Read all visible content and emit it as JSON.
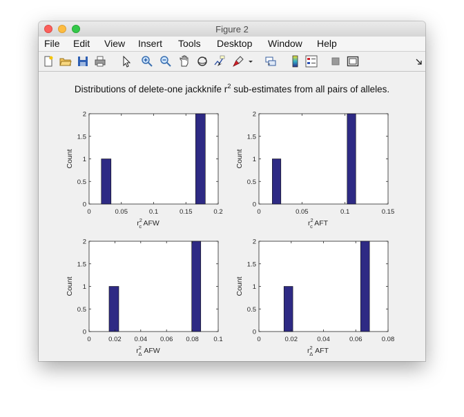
{
  "window": {
    "title": "Figure 2"
  },
  "menu": [
    "File",
    "Edit",
    "View",
    "Insert",
    "Tools",
    "Desktop",
    "Window",
    "Help"
  ],
  "toolbar": [
    "new-figure-icon",
    "open-file-icon",
    "save-icon",
    "print-icon",
    "pointer-icon",
    "zoom-in-icon",
    "zoom-out-icon",
    "pan-icon",
    "rotate-3d-icon",
    "data-cursor-icon",
    "brush-icon",
    "link-plot-icon",
    "colorbar-icon",
    "legend-icon",
    "hide-plot-tools-icon",
    "show-plot-tools-icon",
    "dock-arrow-icon"
  ],
  "figure": {
    "title_main": "Distributions of delete-one jackknife r",
    "title_sup": "2",
    "title_tail": " sub-estimates from all pairs of alleles."
  },
  "chart_data": [
    {
      "type": "bar",
      "xlabel": {
        "base": "r",
        "sup": "2",
        "sub": "c",
        "tail": " AFW"
      },
      "ylabel": "Count",
      "xlim": [
        0,
        0.2
      ],
      "ylim": [
        0,
        2
      ],
      "xticks": [
        "0",
        "0.05",
        "0.1",
        "0.15",
        "0.2"
      ],
      "yticks": [
        "0",
        "0.5",
        "1",
        "1.5",
        "2"
      ],
      "bars": [
        {
          "from": 0.019,
          "to": 0.034,
          "count": 1
        },
        {
          "from": 0.165,
          "to": 0.18,
          "count": 2
        }
      ]
    },
    {
      "type": "bar",
      "xlabel": {
        "base": "r",
        "sup": "2",
        "sub": "c",
        "tail": " AFT"
      },
      "ylabel": "Count",
      "xlim": [
        0,
        0.15
      ],
      "ylim": [
        0,
        2
      ],
      "xticks": [
        "0",
        "0.05",
        "0.1",
        "0.15"
      ],
      "yticks": [
        "0",
        "0.5",
        "1",
        "1.5",
        "2"
      ],
      "bars": [
        {
          "from": 0.0155,
          "to": 0.0255,
          "count": 1
        },
        {
          "from": 0.1025,
          "to": 0.1125,
          "count": 2
        }
      ]
    },
    {
      "type": "bar",
      "xlabel": {
        "base": "r",
        "sup": "2",
        "sub": "Δ",
        "tail": " AFW"
      },
      "ylabel": "Count",
      "xlim": [
        0,
        0.1
      ],
      "ylim": [
        0,
        2
      ],
      "xticks": [
        "0",
        "0.02",
        "0.04",
        "0.06",
        "0.08",
        "0.1"
      ],
      "yticks": [
        "0",
        "0.5",
        "1",
        "1.5",
        "2"
      ],
      "bars": [
        {
          "from": 0.0155,
          "to": 0.023,
          "count": 1
        },
        {
          "from": 0.0795,
          "to": 0.0865,
          "count": 2
        }
      ]
    },
    {
      "type": "bar",
      "xlabel": {
        "base": "r",
        "sup": "2",
        "sub": "Δ",
        "tail": " AFT"
      },
      "ylabel": "Count",
      "xlim": [
        0,
        0.08
      ],
      "ylim": [
        0,
        2
      ],
      "xticks": [
        "0",
        "0.02",
        "0.04",
        "0.06",
        "0.08"
      ],
      "yticks": [
        "0",
        "0.5",
        "1",
        "1.5",
        "2"
      ],
      "bars": [
        {
          "from": 0.0155,
          "to": 0.021,
          "count": 1
        },
        {
          "from": 0.063,
          "to": 0.0685,
          "count": 2
        }
      ]
    }
  ]
}
